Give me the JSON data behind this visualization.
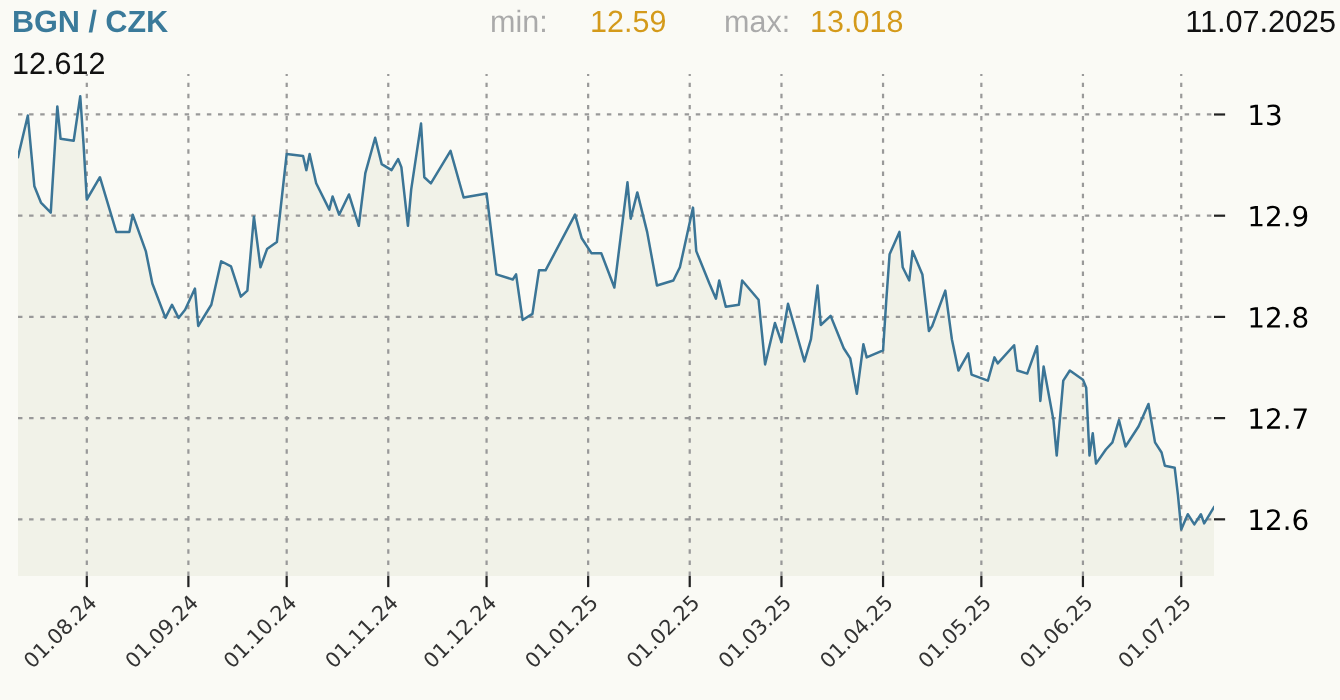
{
  "chart_data": {
    "type": "area",
    "title": "BGN / CZK",
    "annotations": [
      "min:",
      "12.59",
      "max:",
      "13.018",
      "11.07.2025",
      "12.612"
    ],
    "x": [
      "2024-07-11",
      "2024-07-14",
      "2024-07-16",
      "2024-07-18",
      "2024-07-21",
      "2024-07-23",
      "2024-07-24",
      "2024-07-28",
      "2024-07-30",
      "2024-07-31",
      "2024-08-01",
      "2024-08-05",
      "2024-08-10",
      "2024-08-14",
      "2024-08-15",
      "2024-08-19",
      "2024-08-21",
      "2024-08-25",
      "2024-08-27",
      "2024-08-29",
      "2024-08-31",
      "2024-09-03",
      "2024-09-04",
      "2024-09-08",
      "2024-09-11",
      "2024-09-14",
      "2024-09-17",
      "2024-09-19",
      "2024-09-21",
      "2024-09-23",
      "2024-09-25",
      "2024-09-28",
      "2024-10-01",
      "2024-10-06",
      "2024-10-07",
      "2024-10-08",
      "2024-10-10",
      "2024-10-14",
      "2024-10-15",
      "2024-10-17",
      "2024-10-20",
      "2024-10-23",
      "2024-10-25",
      "2024-10-28",
      "2024-10-30",
      "2024-11-02",
      "2024-11-04",
      "2024-11-05",
      "2024-11-07",
      "2024-11-08",
      "2024-11-11",
      "2024-11-12",
      "2024-11-14",
      "2024-11-20",
      "2024-11-24",
      "2024-12-01",
      "2024-12-04",
      "2024-12-09",
      "2024-12-10",
      "2024-12-12",
      "2024-12-15",
      "2024-12-17",
      "2024-12-19",
      "2024-12-28",
      "2024-12-30",
      "2025-01-02",
      "2025-01-05",
      "2025-01-09",
      "2025-01-13",
      "2025-01-14",
      "2025-01-16",
      "2025-01-19",
      "2025-01-22",
      "2025-01-27",
      "2025-01-29",
      "2025-02-02",
      "2025-02-03",
      "2025-02-07",
      "2025-02-09",
      "2025-02-10",
      "2025-02-12",
      "2025-02-16",
      "2025-02-17",
      "2025-02-22",
      "2025-02-24",
      "2025-02-27",
      "2025-03-01",
      "2025-03-03",
      "2025-03-08",
      "2025-03-10",
      "2025-03-12",
      "2025-03-13",
      "2025-03-16",
      "2025-03-18",
      "2025-03-20",
      "2025-03-22",
      "2025-03-24",
      "2025-03-26",
      "2025-03-27",
      "2025-04-01",
      "2025-04-02",
      "2025-04-03",
      "2025-04-06",
      "2025-04-07",
      "2025-04-09",
      "2025-04-10",
      "2025-04-13",
      "2025-04-15",
      "2025-04-16",
      "2025-04-20",
      "2025-04-22",
      "2025-04-24",
      "2025-04-27",
      "2025-04-28",
      "2025-05-03",
      "2025-05-05",
      "2025-05-06",
      "2025-05-11",
      "2025-05-12",
      "2025-05-15",
      "2025-05-18",
      "2025-05-19",
      "2025-05-20",
      "2025-05-23",
      "2025-05-24",
      "2025-05-26",
      "2025-05-28",
      "2025-06-01",
      "2025-06-02",
      "2025-06-03",
      "2025-06-04",
      "2025-06-05",
      "2025-06-08",
      "2025-06-10",
      "2025-06-12",
      "2025-06-14",
      "2025-06-18",
      "2025-06-21",
      "2025-06-23",
      "2025-06-25",
      "2025-06-26",
      "2025-06-29",
      "2025-06-30",
      "2025-07-01",
      "2025-07-03",
      "2025-07-05",
      "2025-07-07",
      "2025-07-08",
      "2025-07-11"
    ],
    "series": [
      {
        "color": "#3b7596",
        "values": [
          12.958,
          12.999,
          12.929,
          12.913,
          12.903,
          13.008,
          12.976,
          12.974,
          13.018,
          12.971,
          12.916,
          12.938,
          12.884,
          12.884,
          12.901,
          12.865,
          12.833,
          12.799,
          12.812,
          12.799,
          12.807,
          12.828,
          12.791,
          12.812,
          12.855,
          12.85,
          12.82,
          12.826,
          12.899,
          12.849,
          12.867,
          12.874,
          12.961,
          12.959,
          12.945,
          12.961,
          12.932,
          12.906,
          12.919,
          12.901,
          12.921,
          12.89,
          12.942,
          12.977,
          12.951,
          12.945,
          12.956,
          12.948,
          12.89,
          12.926,
          12.991,
          12.938,
          12.932,
          12.964,
          12.918,
          12.922,
          12.842,
          12.837,
          12.842,
          12.797,
          12.803,
          12.846,
          12.846,
          12.901,
          12.878,
          12.863,
          12.863,
          12.829,
          12.933,
          12.897,
          12.923,
          12.884,
          12.831,
          12.836,
          12.849,
          12.908,
          12.865,
          12.833,
          12.818,
          12.836,
          12.81,
          12.812,
          12.836,
          12.817,
          12.753,
          12.794,
          12.775,
          12.813,
          12.756,
          12.778,
          12.831,
          12.792,
          12.801,
          12.785,
          12.769,
          12.759,
          12.724,
          12.773,
          12.76,
          12.767,
          12.817,
          12.862,
          12.884,
          12.849,
          12.836,
          12.865,
          12.842,
          12.786,
          12.791,
          12.826,
          12.778,
          12.747,
          12.764,
          12.743,
          12.737,
          12.76,
          12.754,
          12.772,
          12.747,
          12.744,
          12.771,
          12.717,
          12.751,
          12.698,
          12.663,
          12.737,
          12.747,
          12.738,
          12.73,
          12.663,
          12.685,
          12.655,
          12.669,
          12.676,
          12.698,
          12.672,
          12.692,
          12.714,
          12.676,
          12.666,
          12.653,
          12.651,
          12.624,
          12.59,
          12.605,
          12.595,
          12.605,
          12.596,
          12.612
        ]
      }
    ],
    "xlim": [
      "2024-07-11",
      "2025-07-11"
    ],
    "xticks": [
      {
        "value": "2024-08-01",
        "label": "01.08.24"
      },
      {
        "value": "2024-09-01",
        "label": "01.09.24"
      },
      {
        "value": "2024-10-01",
        "label": "01.10.24"
      },
      {
        "value": "2024-11-01",
        "label": "01.11.24"
      },
      {
        "value": "2024-12-01",
        "label": "01.12.24"
      },
      {
        "value": "2025-01-01",
        "label": "01.01.25"
      },
      {
        "value": "2025-02-01",
        "label": "01.02.25"
      },
      {
        "value": "2025-03-01",
        "label": "01.03.25"
      },
      {
        "value": "2025-04-01",
        "label": "01.04.25"
      },
      {
        "value": "2025-05-01",
        "label": "01.05.25"
      },
      {
        "value": "2025-06-01",
        "label": "01.06.25"
      },
      {
        "value": "2025-07-01",
        "label": "01.07.25"
      }
    ],
    "ylim": [
      12.544,
      13.04
    ],
    "yticks": [
      12.6,
      12.7,
      12.8,
      12.9,
      13
    ],
    "grid": true
  }
}
